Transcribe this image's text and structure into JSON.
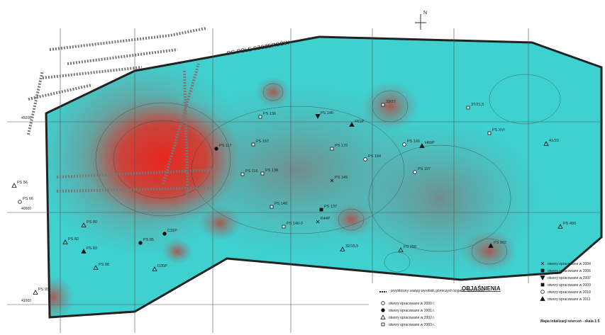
{
  "north": "N",
  "boundary_label": "OG POLE SZCZERCÓW",
  "grid_labels": [
    "45000",
    "40000",
    "41000"
  ],
  "boreholes": [
    "PS 56",
    "PS 66",
    "PS 80",
    "PS 82",
    "PS 83",
    "PS 88",
    "PS 85",
    "PS 93",
    "C31P",
    "D35P",
    "PS 137",
    "PS 140",
    "PS 140-2",
    "PS 149",
    "PS 157",
    "PS 194",
    "PS 165",
    "PS 197",
    "H60P",
    "PS 200",
    "PS 202",
    "PS 490",
    "PS XVI",
    "37/21,5",
    "33/27",
    "41/20",
    "PS 146",
    "F61P",
    "K44P",
    "32/15,5",
    "PS 170",
    "PS 136",
    "PS 138",
    "PS 116",
    "PS 117"
  ],
  "legend": {
    "title": "OBJAŚNIENIA",
    "mining_note": "- przybliżony zasięg wyrobisk górniczych kopalni \"Szczerców\"",
    "left": [
      "otwory opracowane w 2000 r.",
      "otwory opracowane w 2001 r.",
      "otwory opracowane w 2002 r.",
      "otwory opracowane w 2003 r."
    ],
    "right": [
      "otwory opracowane w 2004",
      "otwory opracowane w 2006",
      "otwory opracowane w 2007",
      "otwory opracowane w 2009",
      "otwory opracowane w 2010",
      "otwory opracowane w 2011"
    ]
  },
  "footer": "Mapa lokalizacji wierceń - skala 1:5"
}
